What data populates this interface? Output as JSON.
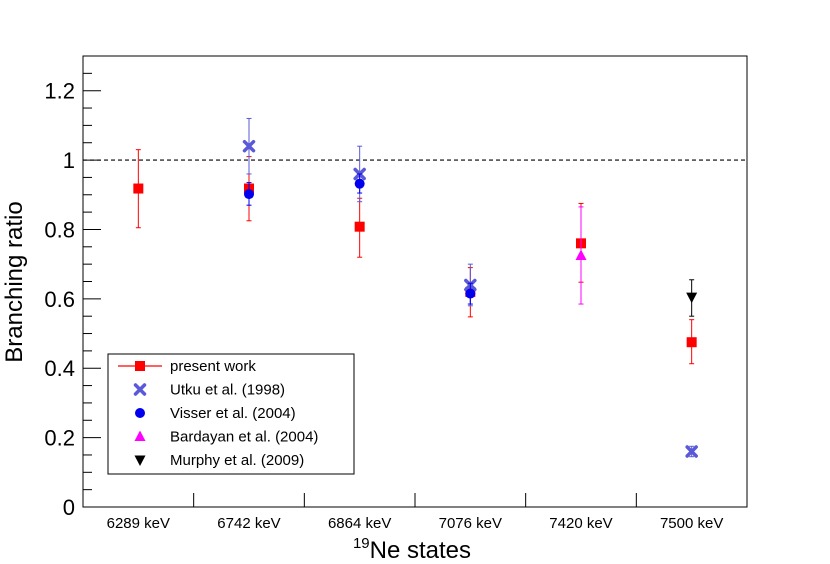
{
  "chart_data": {
    "type": "scatter",
    "xlabel_sup": "19",
    "xlabel_main": "Ne states",
    "ylabel": "Branching ratio",
    "categories": [
      "6289 keV",
      "6742 keV",
      "6864 keV",
      "7076 keV",
      "7420 keV",
      "7500 keV"
    ],
    "ylim": [
      0,
      1.3
    ],
    "yticks": [
      "0",
      "0.2",
      "0.4",
      "0.6",
      "0.8",
      "1",
      "1.2"
    ],
    "ytick_values": [
      0,
      0.2,
      0.4,
      0.6,
      0.8,
      1.0,
      1.2
    ],
    "reference_line": 1.0,
    "series": [
      {
        "name": "present work",
        "color": "#ff0000",
        "marker": "square",
        "legend_line": true,
        "points": [
          {
            "category": "6289 keV",
            "y": 0.918,
            "yerr_low": 0.805,
            "yerr_high": 1.03
          },
          {
            "category": "6742 keV",
            "y": 0.918,
            "yerr_low": 0.825,
            "yerr_high": 1.01
          },
          {
            "category": "6864 keV",
            "y": 0.808,
            "yerr_low": 0.72,
            "yerr_high": 0.89
          },
          {
            "category": "7076 keV",
            "y": 0.62,
            "yerr_low": 0.548,
            "yerr_high": 0.69
          },
          {
            "category": "7420 keV",
            "y": 0.76,
            "yerr_low": 0.648,
            "yerr_high": 0.875
          },
          {
            "category": "7500 keV",
            "y": 0.475,
            "yerr_low": 0.413,
            "yerr_high": 0.54
          }
        ]
      },
      {
        "name": "Utku et al. (1998)",
        "color": "#5a5ad8",
        "marker": "x",
        "points": [
          {
            "category": "6742 keV",
            "y": 1.04,
            "yerr_low": 0.96,
            "yerr_high": 1.12
          },
          {
            "category": "6864 keV",
            "y": 0.96,
            "yerr_low": 0.88,
            "yerr_high": 1.04
          },
          {
            "category": "7076 keV",
            "y": 0.64,
            "yerr_low": 0.58,
            "yerr_high": 0.7
          },
          {
            "category": "7500 keV",
            "y": 0.16,
            "yerr_low": 0.145,
            "yerr_high": 0.175
          }
        ]
      },
      {
        "name": "Visser et al. (2004)",
        "color": "#0000ee",
        "marker": "circle",
        "points": [
          {
            "category": "6742 keV",
            "y": 0.902,
            "yerr_low": 0.87,
            "yerr_high": 0.935
          },
          {
            "category": "6864 keV",
            "y": 0.932,
            "yerr_low": 0.905,
            "yerr_high": 0.96
          },
          {
            "category": "7076 keV",
            "y": 0.615,
            "yerr_low": 0.585,
            "yerr_high": 0.645
          }
        ]
      },
      {
        "name": "Bardayan et al. (2004)",
        "color": "#ff00ff",
        "marker": "triangle-up",
        "points": [
          {
            "category": "7420 keV",
            "y": 0.725,
            "yerr_low": 0.585,
            "yerr_high": 0.865
          }
        ]
      },
      {
        "name": "Murphy et al. (2009)",
        "color": "#000000",
        "marker": "triangle-down",
        "points": [
          {
            "category": "7500 keV",
            "y": 0.605,
            "yerr_low": 0.55,
            "yerr_high": 0.655
          }
        ]
      }
    ]
  }
}
